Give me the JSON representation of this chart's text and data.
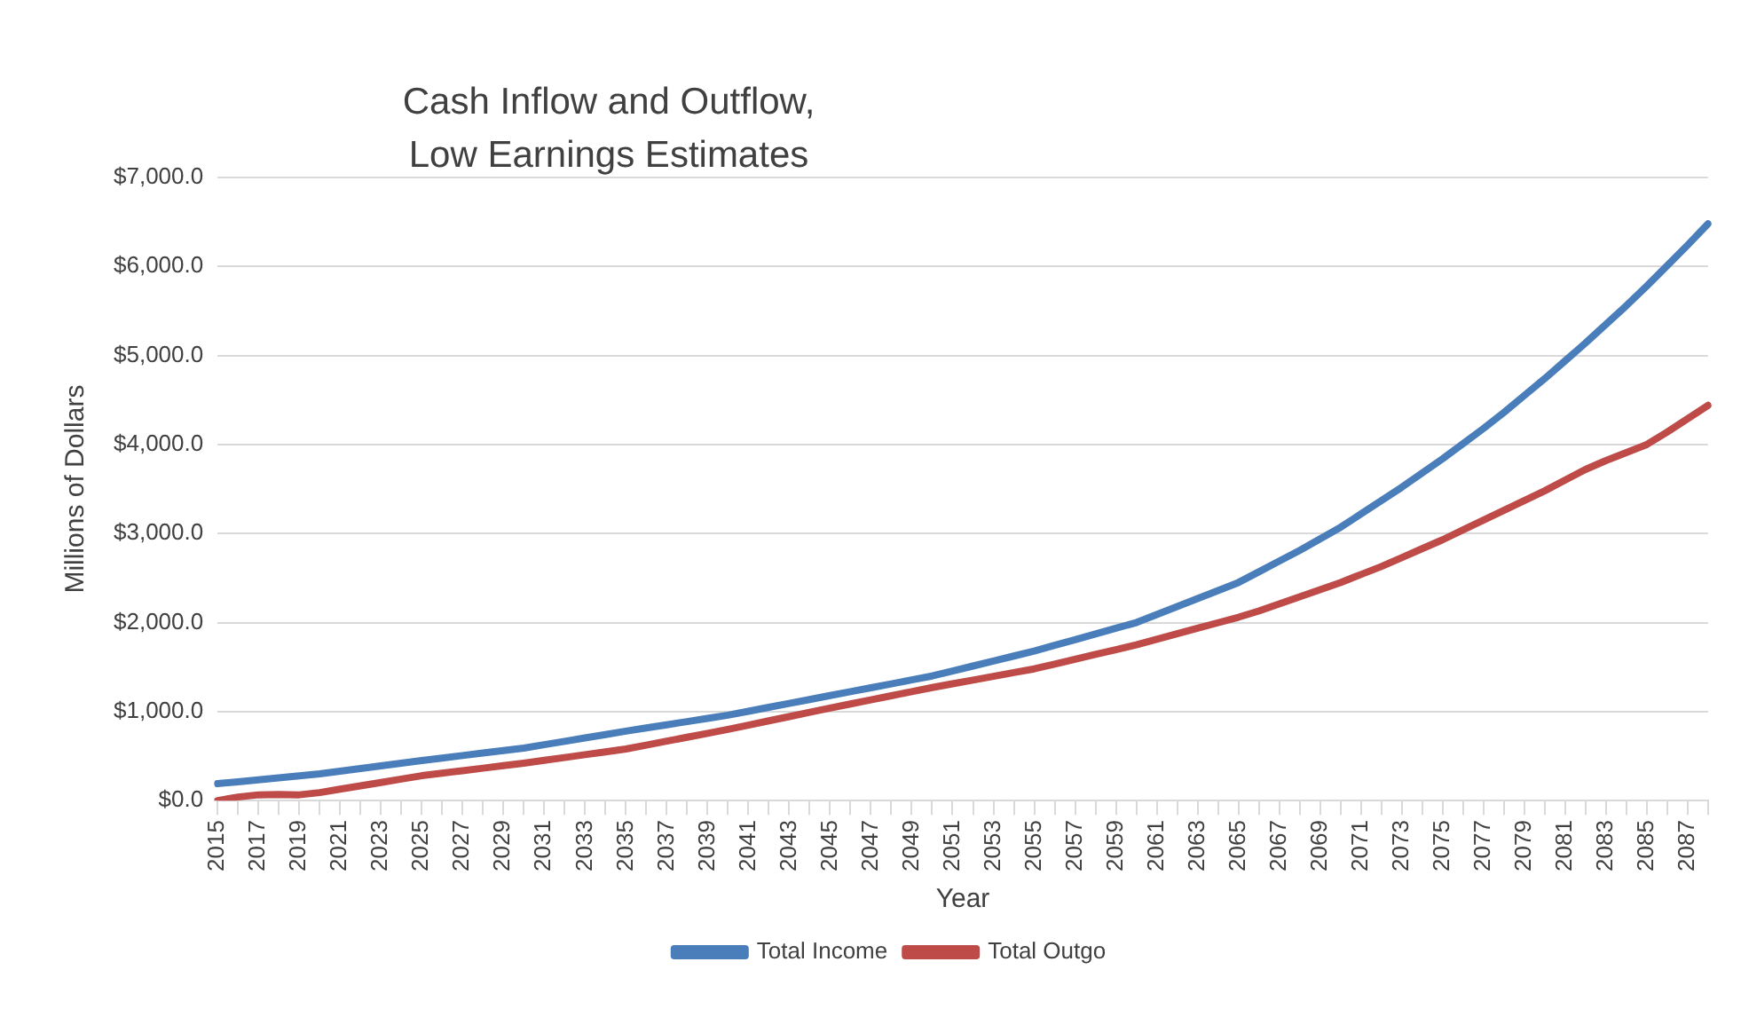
{
  "chart_data": {
    "type": "line",
    "title": "Cash Inflow and Outflow,\nLow Earnings Estimates",
    "xlabel": "Year",
    "ylabel": "Millions of Dollars",
    "categories": [
      "2015",
      null,
      "2017",
      null,
      "2019",
      null,
      "2021",
      null,
      "2023",
      null,
      "2025",
      null,
      "2027",
      null,
      "2029",
      null,
      "2031",
      null,
      "2033",
      null,
      "2035",
      null,
      "2037",
      null,
      "2039",
      null,
      "2041",
      null,
      "2043",
      null,
      "2045",
      null,
      "2047",
      null,
      "2049",
      null,
      "2051",
      null,
      "2053",
      null,
      "2055",
      null,
      "2057",
      null,
      "2059",
      null,
      "2061",
      null,
      "2063",
      null,
      "2065",
      null,
      "2067",
      null,
      "2069",
      null,
      "2071",
      null,
      "2073",
      null,
      "2075",
      null,
      "2077",
      null,
      "2079",
      null,
      "2081",
      null,
      "2083",
      null,
      "2085",
      null,
      "2087",
      null
    ],
    "series": [
      {
        "name": "Total Income",
        "color": "#4a7ebb",
        "values": [
          190,
          212,
          234,
          256,
          278,
          300,
          330,
          360,
          390,
          420,
          450,
          478,
          506,
          534,
          562,
          590,
          628,
          666,
          704,
          742,
          780,
          816,
          852,
          888,
          924,
          960,
          1004,
          1048,
          1092,
          1136,
          1180,
          1224,
          1268,
          1312,
          1356,
          1400,
          1456,
          1512,
          1568,
          1624,
          1680,
          1744,
          1808,
          1872,
          1936,
          2000,
          2090,
          2180,
          2270,
          2360,
          2450,
          2570,
          2690,
          2810,
          2940,
          3070,
          3220,
          3370,
          3520,
          3680,
          3840,
          4010,
          4180,
          4360,
          4550,
          4740,
          4940,
          5140,
          5350,
          5560,
          5780,
          6010,
          6240,
          6480
        ]
      },
      {
        "name": "Total Outgo",
        "color": "#be4b48",
        "values": [
          0,
          40,
          65,
          70,
          65,
          90,
          128,
          166,
          204,
          242,
          280,
          308,
          336,
          364,
          392,
          420,
          452,
          484,
          516,
          548,
          580,
          624,
          668,
          712,
          756,
          800,
          848,
          896,
          944,
          992,
          1040,
          1086,
          1132,
          1178,
          1224,
          1270,
          1312,
          1354,
          1396,
          1438,
          1480,
          1534,
          1588,
          1642,
          1696,
          1750,
          1812,
          1874,
          1936,
          1998,
          2060,
          2130,
          2210,
          2290,
          2370,
          2450,
          2540,
          2630,
          2730,
          2830,
          2930,
          3040,
          3150,
          3260,
          3370,
          3480,
          3600,
          3720,
          3820,
          3910,
          4000,
          4140,
          4290,
          4440
        ]
      }
    ],
    "ylim": [
      0,
      7000
    ],
    "yticks": [
      {
        "value": 0,
        "label": "$0.0"
      },
      {
        "value": 1000,
        "label": "$1,000.0"
      },
      {
        "value": 2000,
        "label": "$2,000.0"
      },
      {
        "value": 3000,
        "label": "$3,000.0"
      },
      {
        "value": 4000,
        "label": "$4,000.0"
      },
      {
        "value": 5000,
        "label": "$5,000.0"
      },
      {
        "value": 6000,
        "label": "$6,000.0"
      },
      {
        "value": 7000,
        "label": "$7,000.0"
      }
    ],
    "grid": "y",
    "legend": "bottom",
    "marker": "none",
    "line_style": "solid"
  }
}
